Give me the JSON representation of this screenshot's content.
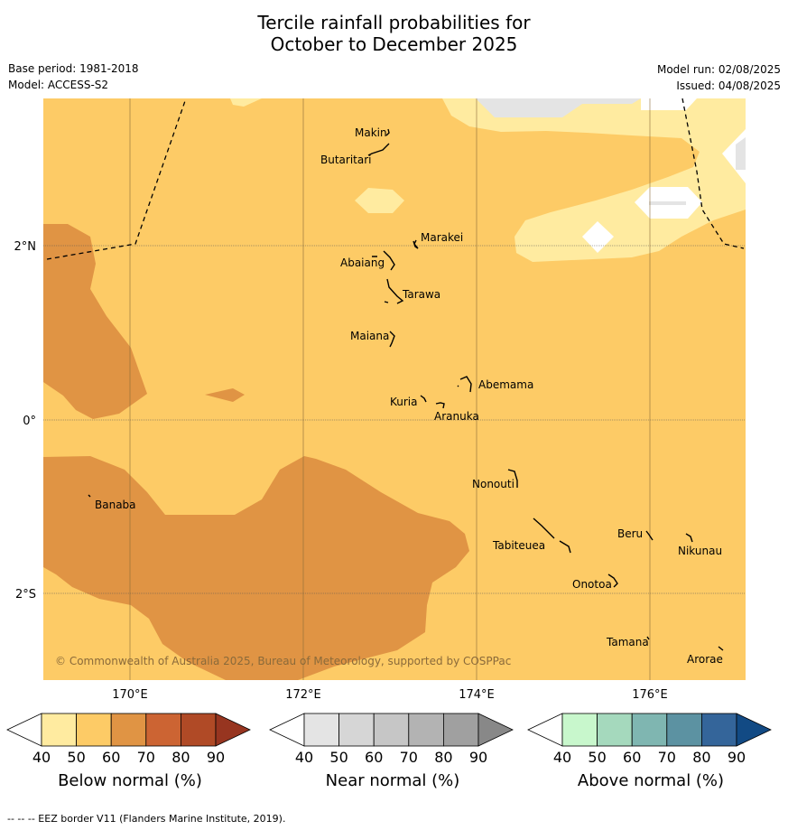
{
  "title": {
    "line1": "Tercile rainfall probabilities for",
    "line2": "October to December 2025"
  },
  "meta": {
    "base_period": "Base period: 1981-2018",
    "model": "Model: ACCESS-S2",
    "model_run": "Model run: 02/08/2025",
    "issued": "Issued: 04/08/2025"
  },
  "map": {
    "lat_ticks": [
      "2°N",
      "0°",
      "2°S"
    ],
    "lon_ticks": [
      "170°E",
      "172°E",
      "174°E",
      "176°E"
    ],
    "copyright": "© Commonwealth of Australia 2025, Bureau of Meteorology, supported by COSPPac",
    "islands": {
      "makin": "Makin",
      "butaritari": "Butaritari",
      "marakei": "Marakei",
      "abaiang": "Abaiang",
      "tarawa": "Tarawa",
      "maiana": "Maiana",
      "abemama": "Abemama",
      "kuria": "Kuria",
      "aranuka": "Aranuka",
      "banaba": "Banaba",
      "nonouti": "Nonouti",
      "tabiteuea": "Tabiteuea",
      "beru": "Beru",
      "nikunau": "Nikunau",
      "onotoa": "Onotoa",
      "tamana": "Tamana",
      "arorae": "Arorae"
    }
  },
  "colorbars": {
    "tick_values": [
      "40",
      "50",
      "60",
      "70",
      "80",
      "90"
    ],
    "below": {
      "label": "Below normal (%)",
      "colors": [
        "#ffffff",
        "#ffeba0",
        "#fdcb66",
        "#e09444",
        "#cc6433",
        "#b04a26",
        "#973520"
      ]
    },
    "near": {
      "label": "Near normal (%)",
      "colors": [
        "#ffffff",
        "#e4e4e4",
        "#d6d6d6",
        "#c6c6c6",
        "#b3b3b3",
        "#a0a0a0",
        "#888888"
      ]
    },
    "above": {
      "label": "Above normal (%)",
      "colors": [
        "#ffffff",
        "#c8f7cc",
        "#a5d9bd",
        "#7fb6b1",
        "#5c92a2",
        "#34659a",
        "#124a84"
      ]
    }
  },
  "footer": "--  --  -- EEZ border V11 (Flanders Marine Institute, 2019)."
}
